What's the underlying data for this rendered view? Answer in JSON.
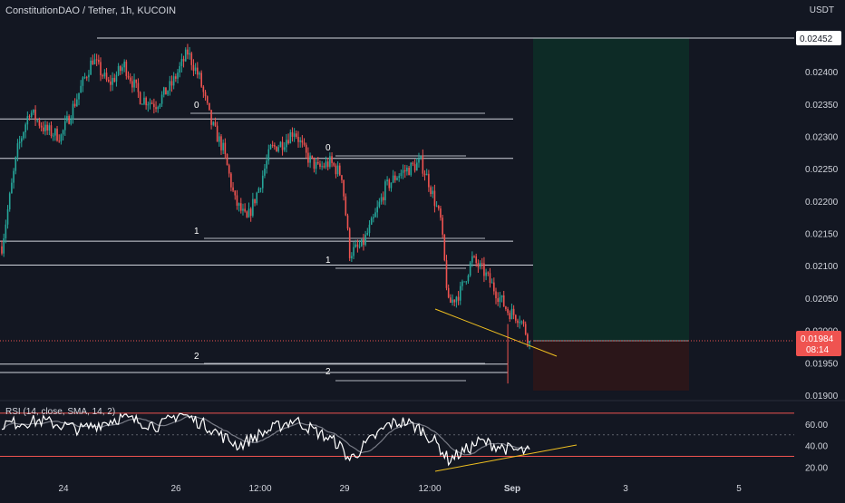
{
  "header": {
    "symbol_title": "ConstitutionDAO / Tether, 1h, KUCOIN",
    "currency": "USDT"
  },
  "colors": {
    "background": "#131722",
    "up": "#26a69a",
    "down": "#ef5350",
    "line": "#d1d4dc",
    "trendline": "#f0c020",
    "long_target_zone": "#0d2b26",
    "long_stop_zone": "#2b1619",
    "price_badge": "#ef5350",
    "rsi_band": "#ef5350"
  },
  "price_axis": {
    "ticks": [
      "0.02400",
      "0.02350",
      "0.02300",
      "0.02250",
      "0.02200",
      "0.02150",
      "0.02100",
      "0.02050",
      "0.02000",
      "0.01950",
      "0.01900"
    ],
    "top_label": "0.02452",
    "current_price": "0.01984",
    "countdown": "08:14"
  },
  "time_axis": {
    "ticks": [
      "24",
      "26",
      "12:00",
      "29",
      "12:00",
      "Sep",
      "3",
      "5"
    ]
  },
  "fib_labels": {
    "left_0": "0",
    "left_1": "1",
    "left_2": "2",
    "mid_0": "0",
    "mid_1": "1",
    "mid_2": "2"
  },
  "rsi": {
    "title": "RSI (14, close, SMA, 14, 2)",
    "ticks": [
      "60.00",
      "40.00",
      "20.00"
    ],
    "upper_band": 70,
    "lower_band": 30
  },
  "chart_data": {
    "type": "candlestick",
    "title": "ConstitutionDAO / Tether, 1h, KUCOIN",
    "ylabel": "USDT",
    "ylim": [
      0.01885,
      0.02475
    ],
    "x_ticks": [
      "24",
      "26",
      "12:00",
      "29",
      "12:00",
      "Sep",
      "3",
      "5"
    ],
    "horizontal_levels": [
      0.02452,
      0.02327,
      0.02266,
      0.02138,
      0.02101,
      0.01948,
      0.01935
    ],
    "current_price": 0.01984,
    "position_box": {
      "entry": 0.01984,
      "target": 0.02452,
      "stop": 0.01907
    },
    "close_anchors": [
      [
        0,
        0.0213
      ],
      [
        8,
        0.0228
      ],
      [
        14,
        0.0234
      ],
      [
        22,
        0.0231
      ],
      [
        30,
        0.023
      ],
      [
        38,
        0.0236
      ],
      [
        46,
        0.0242
      ],
      [
        54,
        0.0238
      ],
      [
        62,
        0.0241
      ],
      [
        70,
        0.0236
      ],
      [
        78,
        0.0235
      ],
      [
        86,
        0.0238
      ],
      [
        94,
        0.0243
      ],
      [
        100,
        0.0239
      ],
      [
        106,
        0.0232
      ],
      [
        112,
        0.0228
      ],
      [
        118,
        0.022
      ],
      [
        124,
        0.0217
      ],
      [
        130,
        0.0222
      ],
      [
        136,
        0.0228
      ],
      [
        142,
        0.0229
      ],
      [
        148,
        0.0231
      ],
      [
        154,
        0.0227
      ],
      [
        160,
        0.0225
      ],
      [
        166,
        0.0226
      ],
      [
        172,
        0.0224
      ],
      [
        176,
        0.0212
      ],
      [
        182,
        0.0213
      ],
      [
        188,
        0.0217
      ],
      [
        194,
        0.0222
      ],
      [
        200,
        0.0224
      ],
      [
        206,
        0.0225
      ],
      [
        212,
        0.0226
      ],
      [
        216,
        0.0223
      ],
      [
        222,
        0.0217
      ],
      [
        226,
        0.0204
      ],
      [
        232,
        0.0206
      ],
      [
        238,
        0.0211
      ],
      [
        244,
        0.0209
      ],
      [
        250,
        0.0206
      ],
      [
        256,
        0.0203
      ],
      [
        262,
        0.0202
      ],
      [
        267,
        0.01984
      ]
    ],
    "rsi_values_anchors": [
      [
        0,
        60
      ],
      [
        20,
        63
      ],
      [
        40,
        55
      ],
      [
        60,
        66
      ],
      [
        80,
        58
      ],
      [
        90,
        70
      ],
      [
        105,
        57
      ],
      [
        112,
        48
      ],
      [
        120,
        40
      ],
      [
        130,
        50
      ],
      [
        140,
        58
      ],
      [
        148,
        64
      ],
      [
        160,
        52
      ],
      [
        170,
        42
      ],
      [
        176,
        27
      ],
      [
        186,
        44
      ],
      [
        196,
        60
      ],
      [
        204,
        62
      ],
      [
        212,
        55
      ],
      [
        220,
        42
      ],
      [
        226,
        27
      ],
      [
        234,
        35
      ],
      [
        242,
        44
      ],
      [
        250,
        40
      ],
      [
        258,
        36
      ],
      [
        267,
        34
      ]
    ],
    "rsi_bands": [
      70,
      30
    ]
  }
}
